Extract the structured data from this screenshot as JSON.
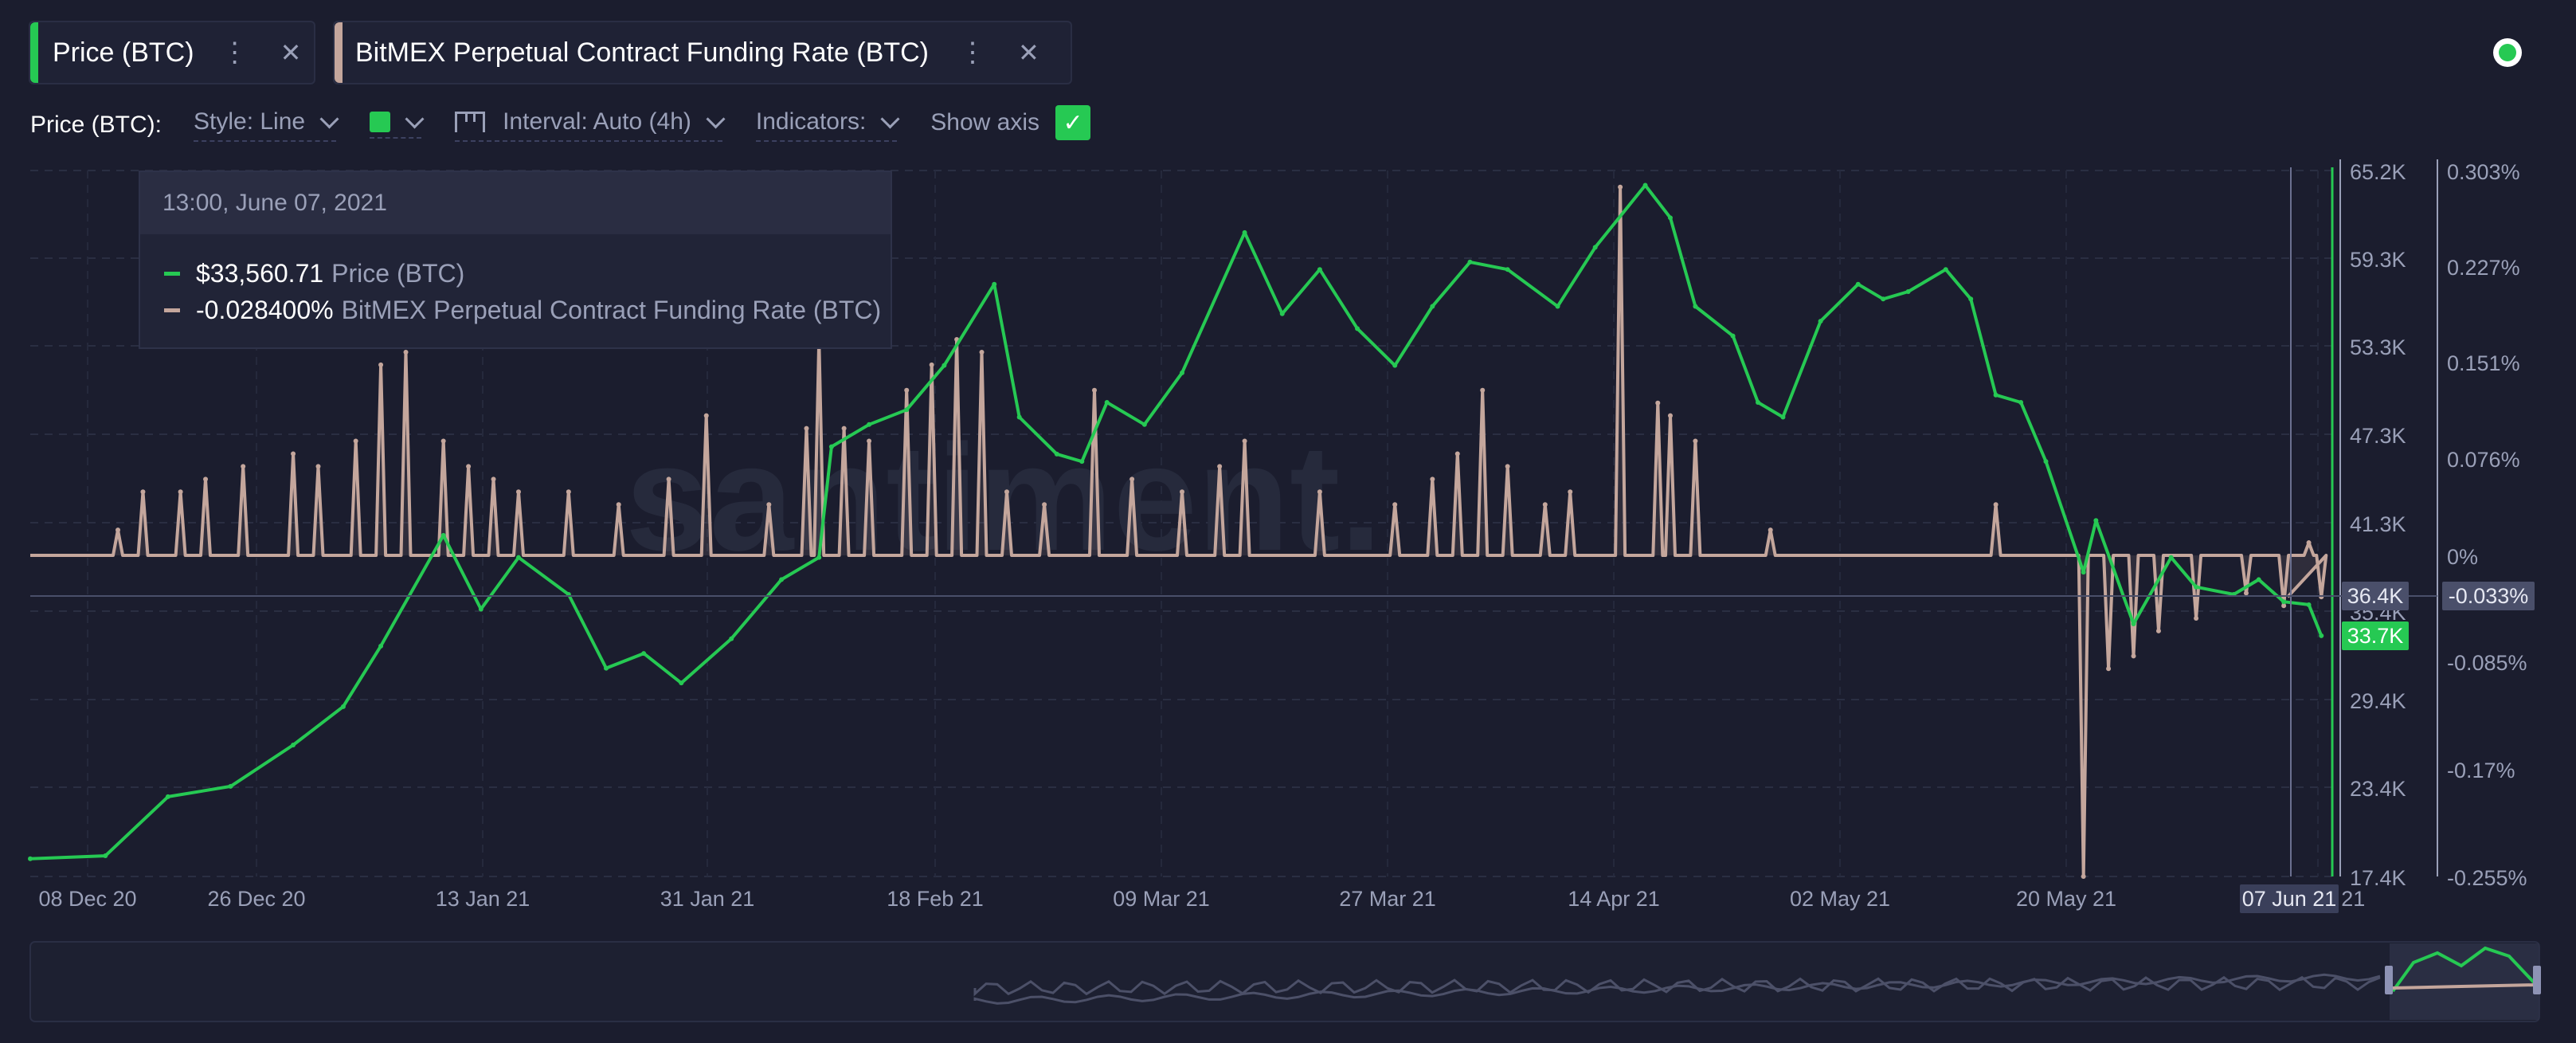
{
  "colors": {
    "background": "#1b1d2e",
    "price": "#26c953",
    "funding": "#c4a69c",
    "axis_text": "#9aa0b8"
  },
  "tabs": [
    {
      "label": "Price (BTC)",
      "accent": "#26c953"
    },
    {
      "label": "BitMEX Perpetual Contract Funding Rate (BTC)",
      "accent": "#c4a69c"
    }
  ],
  "toolbar": {
    "metric": "Price (BTC):",
    "style": "Style: Line",
    "color": "#26c953",
    "interval": "Interval: Auto (4h)",
    "indicators": "Indicators:",
    "show_axis": "Show axis"
  },
  "tooltip": {
    "date": "13:00, June 07, 2021",
    "price_value": "$33,560.71",
    "price_name": "Price (BTC)",
    "funding_value": "-0.028400%",
    "funding_name": "BitMEX Perpetual Contract Funding Rate (BTC)"
  },
  "watermark": "santiment.",
  "chart_data": {
    "type": "line",
    "x_ticks": [
      "08 Dec 20",
      "26 Dec 20",
      "13 Jan 21",
      "31 Jan 21",
      "18 Feb 21",
      "09 Mar 21",
      "27 Mar 21",
      "14 Apr 21",
      "02 May 21",
      "20 May 21",
      "07 Jun 21"
    ],
    "price_axis": {
      "ticks": [
        "65.2K",
        "59.3K",
        "53.3K",
        "47.3K",
        "41.3K",
        "35.4K",
        "29.4K",
        "23.4K",
        "17.4K"
      ],
      "ylim": [
        17400,
        65200
      ]
    },
    "funding_axis": {
      "ticks": [
        "0.303%",
        "0.227%",
        "0.151%",
        "0.076%",
        "0%",
        "-0.085%",
        "-0.17%",
        "-0.255%"
      ],
      "ylim": [
        -0.255,
        0.303
      ]
    },
    "markers": {
      "price_last": "33.7K",
      "price_hover": "36.4K",
      "funding_last": "-0.033%",
      "hover_date": "07 Jun 21"
    },
    "series": [
      {
        "name": "Price (BTC)",
        "axis": "price",
        "points": [
          [
            "2020-12-06",
            18600
          ],
          [
            "2020-12-12",
            18800
          ],
          [
            "2020-12-17",
            22800
          ],
          [
            "2020-12-22",
            23500
          ],
          [
            "2020-12-27",
            26300
          ],
          [
            "2020-12-31",
            28900
          ],
          [
            "2021-01-03",
            33000
          ],
          [
            "2021-01-08",
            40500
          ],
          [
            "2021-01-11",
            35500
          ],
          [
            "2021-01-14",
            39000
          ],
          [
            "2021-01-18",
            36500
          ],
          [
            "2021-01-21",
            31500
          ],
          [
            "2021-01-24",
            32500
          ],
          [
            "2021-01-27",
            30500
          ],
          [
            "2021-01-31",
            33500
          ],
          [
            "2021-02-04",
            37500
          ],
          [
            "2021-02-07",
            39000
          ],
          [
            "2021-02-08",
            46500
          ],
          [
            "2021-02-11",
            48000
          ],
          [
            "2021-02-14",
            49000
          ],
          [
            "2021-02-17",
            52000
          ],
          [
            "2021-02-21",
            57500
          ],
          [
            "2021-02-23",
            48500
          ],
          [
            "2021-02-26",
            46000
          ],
          [
            "2021-02-28",
            45500
          ],
          [
            "2021-03-02",
            49500
          ],
          [
            "2021-03-05",
            48000
          ],
          [
            "2021-03-08",
            51500
          ],
          [
            "2021-03-13",
            61000
          ],
          [
            "2021-03-16",
            55500
          ],
          [
            "2021-03-19",
            58500
          ],
          [
            "2021-03-22",
            54500
          ],
          [
            "2021-03-25",
            52000
          ],
          [
            "2021-03-28",
            56000
          ],
          [
            "2021-03-31",
            59000
          ],
          [
            "2021-04-03",
            58500
          ],
          [
            "2021-04-07",
            56000
          ],
          [
            "2021-04-10",
            60000
          ],
          [
            "2021-04-14",
            64200
          ],
          [
            "2021-04-16",
            62000
          ],
          [
            "2021-04-18",
            56000
          ],
          [
            "2021-04-21",
            54000
          ],
          [
            "2021-04-23",
            49500
          ],
          [
            "2021-04-25",
            48500
          ],
          [
            "2021-04-28",
            55000
          ],
          [
            "2021-05-01",
            57500
          ],
          [
            "2021-05-03",
            56500
          ],
          [
            "2021-05-05",
            57000
          ],
          [
            "2021-05-08",
            58500
          ],
          [
            "2021-05-10",
            56500
          ],
          [
            "2021-05-12",
            50000
          ],
          [
            "2021-05-14",
            49500
          ],
          [
            "2021-05-16",
            45500
          ],
          [
            "2021-05-19",
            38000
          ],
          [
            "2021-05-20",
            41500
          ],
          [
            "2021-05-23",
            34500
          ],
          [
            "2021-05-26",
            39000
          ],
          [
            "2021-05-28",
            37000
          ],
          [
            "2021-05-31",
            36500
          ],
          [
            "2021-06-02",
            37500
          ],
          [
            "2021-06-04",
            36000
          ],
          [
            "2021-06-06",
            35800
          ],
          [
            "2021-06-07",
            33700
          ]
        ]
      },
      {
        "name": "BitMEX Perpetual Contract Funding Rate (BTC)",
        "axis": "funding",
        "baseline": 0,
        "spikes": [
          [
            "2020-12-13",
            0.02
          ],
          [
            "2020-12-15",
            0.05
          ],
          [
            "2020-12-18",
            0.05
          ],
          [
            "2020-12-20",
            0.06
          ],
          [
            "2020-12-23",
            0.07
          ],
          [
            "2020-12-27",
            0.08
          ],
          [
            "2020-12-29",
            0.07
          ],
          [
            "2021-01-01",
            0.09
          ],
          [
            "2021-01-03",
            0.15
          ],
          [
            "2021-01-05",
            0.16
          ],
          [
            "2021-01-08",
            0.09
          ],
          [
            "2021-01-10",
            0.07
          ],
          [
            "2021-01-12",
            0.06
          ],
          [
            "2021-01-14",
            0.05
          ],
          [
            "2021-01-18",
            0.05
          ],
          [
            "2021-01-22",
            0.04
          ],
          [
            "2021-01-26",
            0.06
          ],
          [
            "2021-01-29",
            0.11
          ],
          [
            "2021-02-03",
            0.04
          ],
          [
            "2021-02-06",
            0.1
          ],
          [
            "2021-02-07",
            0.17
          ],
          [
            "2021-02-09",
            0.1
          ],
          [
            "2021-02-11",
            0.09
          ],
          [
            "2021-02-14",
            0.13
          ],
          [
            "2021-02-16",
            0.15
          ],
          [
            "2021-02-18",
            0.17
          ],
          [
            "2021-02-20",
            0.16
          ],
          [
            "2021-02-22",
            0.05
          ],
          [
            "2021-02-25",
            0.04
          ],
          [
            "2021-03-01",
            0.13
          ],
          [
            "2021-03-04",
            0.06
          ],
          [
            "2021-03-08",
            0.05
          ],
          [
            "2021-03-11",
            0.07
          ],
          [
            "2021-03-13",
            0.09
          ],
          [
            "2021-03-19",
            0.05
          ],
          [
            "2021-03-25",
            0.04
          ],
          [
            "2021-03-28",
            0.06
          ],
          [
            "2021-03-30",
            0.08
          ],
          [
            "2021-04-01",
            0.13
          ],
          [
            "2021-04-03",
            0.07
          ],
          [
            "2021-04-06",
            0.04
          ],
          [
            "2021-04-08",
            0.05
          ],
          [
            "2021-04-12",
            0.29
          ],
          [
            "2021-04-15",
            0.12
          ],
          [
            "2021-04-16",
            0.11
          ],
          [
            "2021-04-18",
            0.09
          ],
          [
            "2021-04-24",
            0.02
          ],
          [
            "2021-05-12",
            0.04
          ],
          [
            "2021-05-19",
            -0.255
          ],
          [
            "2021-05-21",
            -0.09
          ],
          [
            "2021-05-23",
            -0.08
          ],
          [
            "2021-05-25",
            -0.06
          ],
          [
            "2021-05-28",
            -0.05
          ],
          [
            "2021-06-01",
            -0.03
          ],
          [
            "2021-06-04",
            -0.04
          ],
          [
            "2021-06-06",
            0.01
          ],
          [
            "2021-06-07",
            -0.033
          ]
        ]
      }
    ]
  }
}
